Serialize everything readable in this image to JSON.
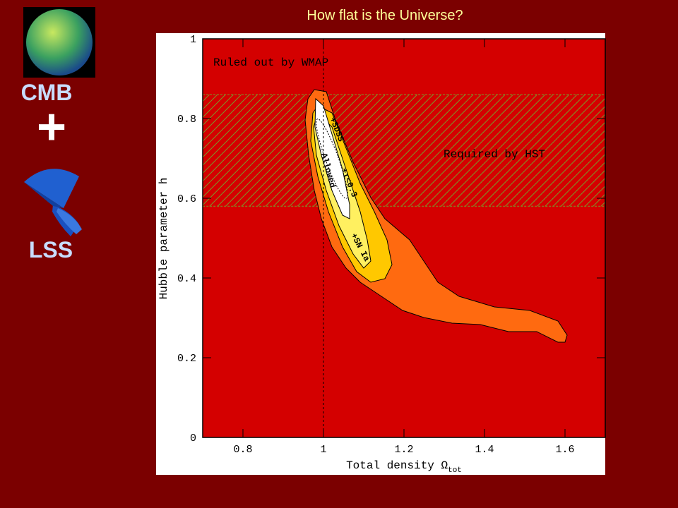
{
  "slide": {
    "title": "How flat is the Universe?",
    "left_labels": {
      "cmb": "CMB",
      "plus": "+",
      "lss": "LSS"
    }
  },
  "chart_data": {
    "type": "contour",
    "xlabel": "Total density Ω",
    "xlabel_sub": "tot",
    "ylabel": "Hubble parameter h",
    "xlim": [
      0.7,
      1.7
    ],
    "ylim": [
      0,
      1
    ],
    "xticks": [
      0.8,
      1,
      1.2,
      1.4,
      1.6
    ],
    "yticks": [
      0,
      0.2,
      0.4,
      0.6,
      0.8,
      1
    ],
    "reference_x": 1,
    "bands": [
      {
        "name": "Required by HST",
        "ylim": [
          0.58,
          0.86
        ],
        "color": "#7a9a2a"
      }
    ],
    "annotations": [
      "Ruled out by WMAP",
      "+SDSS",
      "Allowed",
      "+τ<0.3",
      "+SN Ia"
    ],
    "background_color": "#d40000"
  }
}
